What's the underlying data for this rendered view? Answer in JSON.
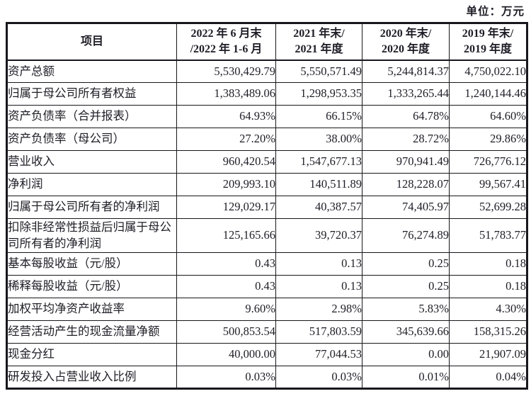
{
  "unit_label": "单位：万元",
  "colors": {
    "text": "#1d1d26",
    "border": "#17171c",
    "background": "#ffffff"
  },
  "table": {
    "header": {
      "item": "项目",
      "cols": [
        {
          "line1": "2022 年 6 月末",
          "line2": "/2022 年 1-6 月"
        },
        {
          "line1": "2021 年末/",
          "line2": "2021 年度"
        },
        {
          "line1": "2020 年末/",
          "line2": "2020 年度"
        },
        {
          "line1": "2019 年末/",
          "line2": "2019 年度"
        }
      ]
    },
    "rows": [
      {
        "label": "资产总额",
        "values": [
          "5,530,429.79",
          "5,550,571.49",
          "5,244,814.37",
          "4,750,022.10"
        ]
      },
      {
        "label": "归属于母公司所有者权益",
        "values": [
          "1,383,489.06",
          "1,298,953.35",
          "1,333,265.44",
          "1,240,144.46"
        ]
      },
      {
        "label": "资产负债率（合并报表）",
        "values": [
          "64.93%",
          "66.15%",
          "64.78%",
          "64.60%"
        ]
      },
      {
        "label": "资产负债率（母公司）",
        "values": [
          "27.20%",
          "38.00%",
          "28.72%",
          "29.86%"
        ]
      },
      {
        "label": "营业收入",
        "values": [
          "960,420.54",
          "1,547,677.13",
          "970,941.49",
          "726,776.12"
        ]
      },
      {
        "label": "净利润",
        "values": [
          "209,993.10",
          "140,511.89",
          "128,228.07",
          "99,567.41"
        ]
      },
      {
        "label": "归属于母公司所有者的净利润",
        "values": [
          "129,029.17",
          "40,387.57",
          "74,405.97",
          "52,699.28"
        ]
      },
      {
        "label": "扣除非经常性损益后归属于母公司所有者的净利润",
        "values": [
          "125,165.66",
          "39,720.37",
          "76,274.89",
          "51,783.77"
        ]
      },
      {
        "label": "基本每股收益（元/股）",
        "values": [
          "0.43",
          "0.13",
          "0.25",
          "0.18"
        ]
      },
      {
        "label": "稀释每股收益（元/股）",
        "values": [
          "0.43",
          "0.13",
          "0.25",
          "0.18"
        ]
      },
      {
        "label": "加权平均净资产收益率",
        "values": [
          "9.60%",
          "2.98%",
          "5.83%",
          "4.30%"
        ]
      },
      {
        "label": "经营活动产生的现金流量净额",
        "values": [
          "500,853.54",
          "517,803.59",
          "345,639.66",
          "158,315.26"
        ]
      },
      {
        "label": "现金分红",
        "values": [
          "40,000.00",
          "77,044.53",
          "0.00",
          "21,907.09"
        ]
      },
      {
        "label": "研发投入占营业收入比例",
        "values": [
          "0.03%",
          "0.03%",
          "0.01%",
          "0.04%"
        ]
      }
    ]
  }
}
